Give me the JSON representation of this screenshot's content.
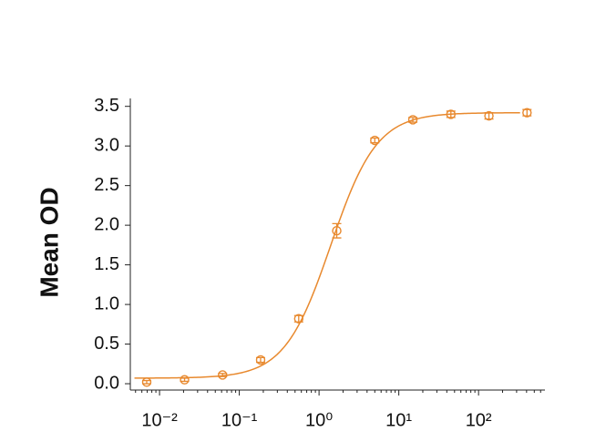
{
  "chart_data": {
    "type": "scatter",
    "y_label": "Mean OD",
    "color": "#e8892e",
    "log_x": true,
    "x": [
      0.0069,
      0.0206,
      0.0617,
      0.185,
      0.556,
      1.667,
      5,
      15,
      45,
      135,
      405
    ],
    "values": [
      0.02,
      0.05,
      0.11,
      0.3,
      0.82,
      1.93,
      3.07,
      3.33,
      3.4,
      3.38,
      3.42
    ],
    "errors": [
      0.02,
      0.02,
      0.02,
      0.03,
      0.04,
      0.09,
      0.03,
      0.03,
      0.04,
      0.04,
      0.04
    ],
    "fit": {
      "bottom": 0.07,
      "top": 3.42,
      "ec50": 1.4,
      "hill": 1.5
    },
    "xlim": [
      0.0043,
      680
    ],
    "ylim": [
      -0.08,
      3.6
    ],
    "xticks": [
      {
        "value": 0.01,
        "label": "10⁻²"
      },
      {
        "value": 0.1,
        "label": "10⁻¹"
      },
      {
        "value": 1,
        "label": "10⁰"
      },
      {
        "value": 10,
        "label": "10¹"
      },
      {
        "value": 100,
        "label": "10²"
      }
    ],
    "yticks": [
      {
        "value": 0,
        "label": "0.0"
      },
      0.5,
      {
        "value": 1,
        "label": "1.0"
      },
      1.5,
      {
        "value": 2,
        "label": "2.0"
      },
      2.5,
      {
        "value": 3,
        "label": "3.0"
      },
      3.5
    ]
  }
}
